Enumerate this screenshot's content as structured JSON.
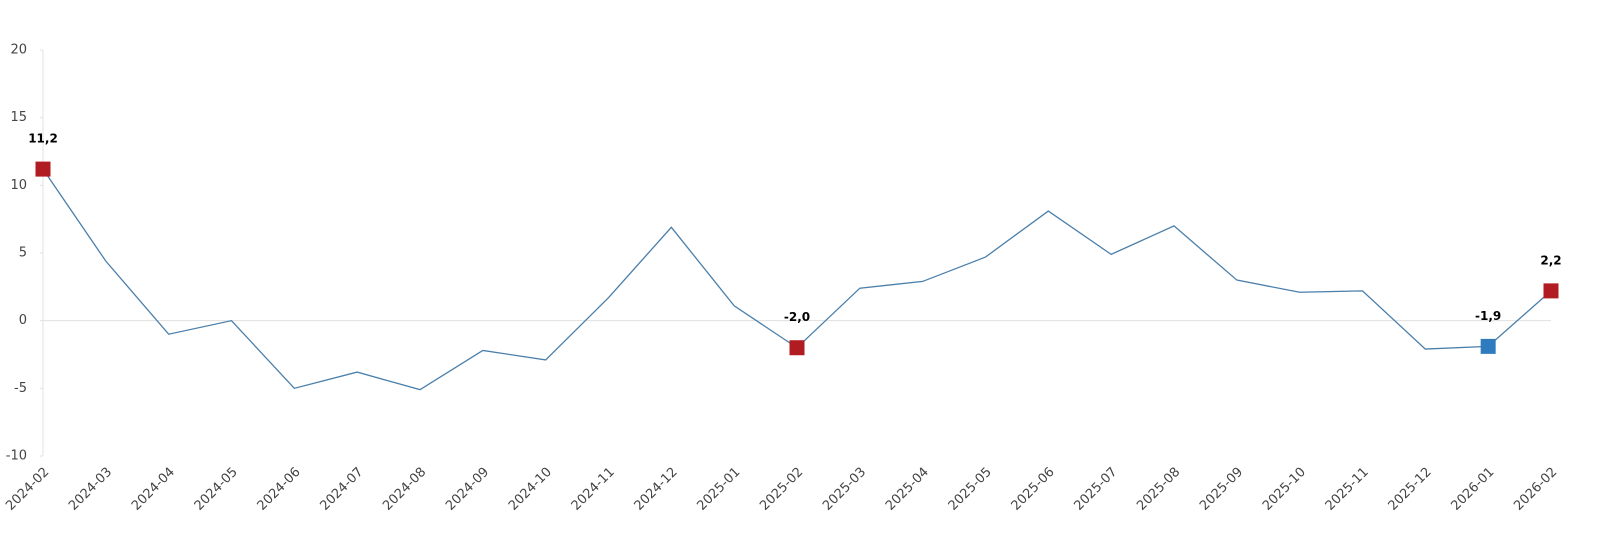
{
  "chart_data": {
    "type": "line",
    "categories": [
      "2024-02",
      "2024-03",
      "2024-04",
      "2024-05",
      "2024-06",
      "2024-07",
      "2024-08",
      "2024-09",
      "2024-10",
      "2024-11",
      "2024-12",
      "2025-01",
      "2025-02",
      "2025-03",
      "2025-04",
      "2025-05",
      "2025-06",
      "2025-07",
      "2025-08",
      "2025-09",
      "2025-10",
      "2025-11",
      "2025-12",
      "2026-01",
      "2026-02"
    ],
    "series": [
      {
        "color": "#4a7fab",
        "values": [
          11.2,
          4.4,
          -1.0,
          0.0,
          -5.0,
          -3.8,
          -5.1,
          -2.2,
          -2.9,
          1.7,
          6.9,
          1.1,
          -2.0,
          2.4,
          2.9,
          4.7,
          8.1,
          4.9,
          7.0,
          3.0,
          2.1,
          2.2,
          -2.1,
          -1.9,
          2.2
        ],
        "value_labels": [
          "11,2",
          null,
          null,
          null,
          null,
          null,
          null,
          null,
          null,
          null,
          null,
          null,
          "-2,0",
          null,
          null,
          null,
          null,
          null,
          null,
          null,
          null,
          null,
          null,
          "-1,9",
          "2,2"
        ],
        "marker_colors": [
          "#b01c22",
          null,
          null,
          null,
          null,
          null,
          null,
          null,
          null,
          null,
          null,
          null,
          "#b01c22",
          null,
          null,
          null,
          null,
          null,
          null,
          null,
          null,
          null,
          null,
          "#2e7bbf",
          "#b01c22"
        ]
      }
    ],
    "ylim": [
      -10,
      20
    ],
    "yticks": [
      -10,
      -5,
      0,
      5,
      10,
      15,
      20
    ],
    "zero_line": true
  }
}
